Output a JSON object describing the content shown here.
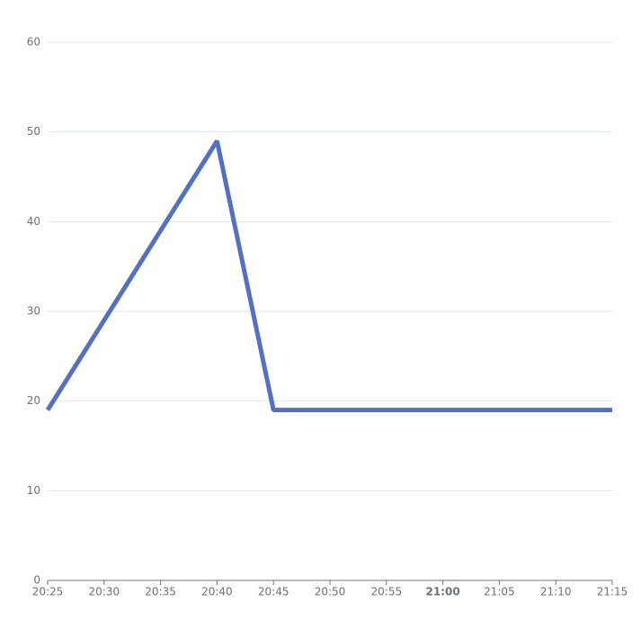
{
  "chart_data": {
    "type": "line",
    "x": [
      "20:25",
      "20:40",
      "20:45",
      "21:15"
    ],
    "series": [
      {
        "color": "#5470c6",
        "values": [
          19,
          49,
          19,
          19
        ]
      }
    ],
    "xlim": [
      "20:25",
      "21:15"
    ],
    "xticks": [
      "20:25",
      "20:30",
      "20:35",
      "20:40",
      "20:45",
      "20:50",
      "20:55",
      "21:00",
      "21:05",
      "21:10",
      "21:15"
    ],
    "ylim": [
      0,
      60
    ],
    "yticks": [
      0,
      10,
      20,
      30,
      40,
      50,
      60
    ],
    "grid": true
  }
}
